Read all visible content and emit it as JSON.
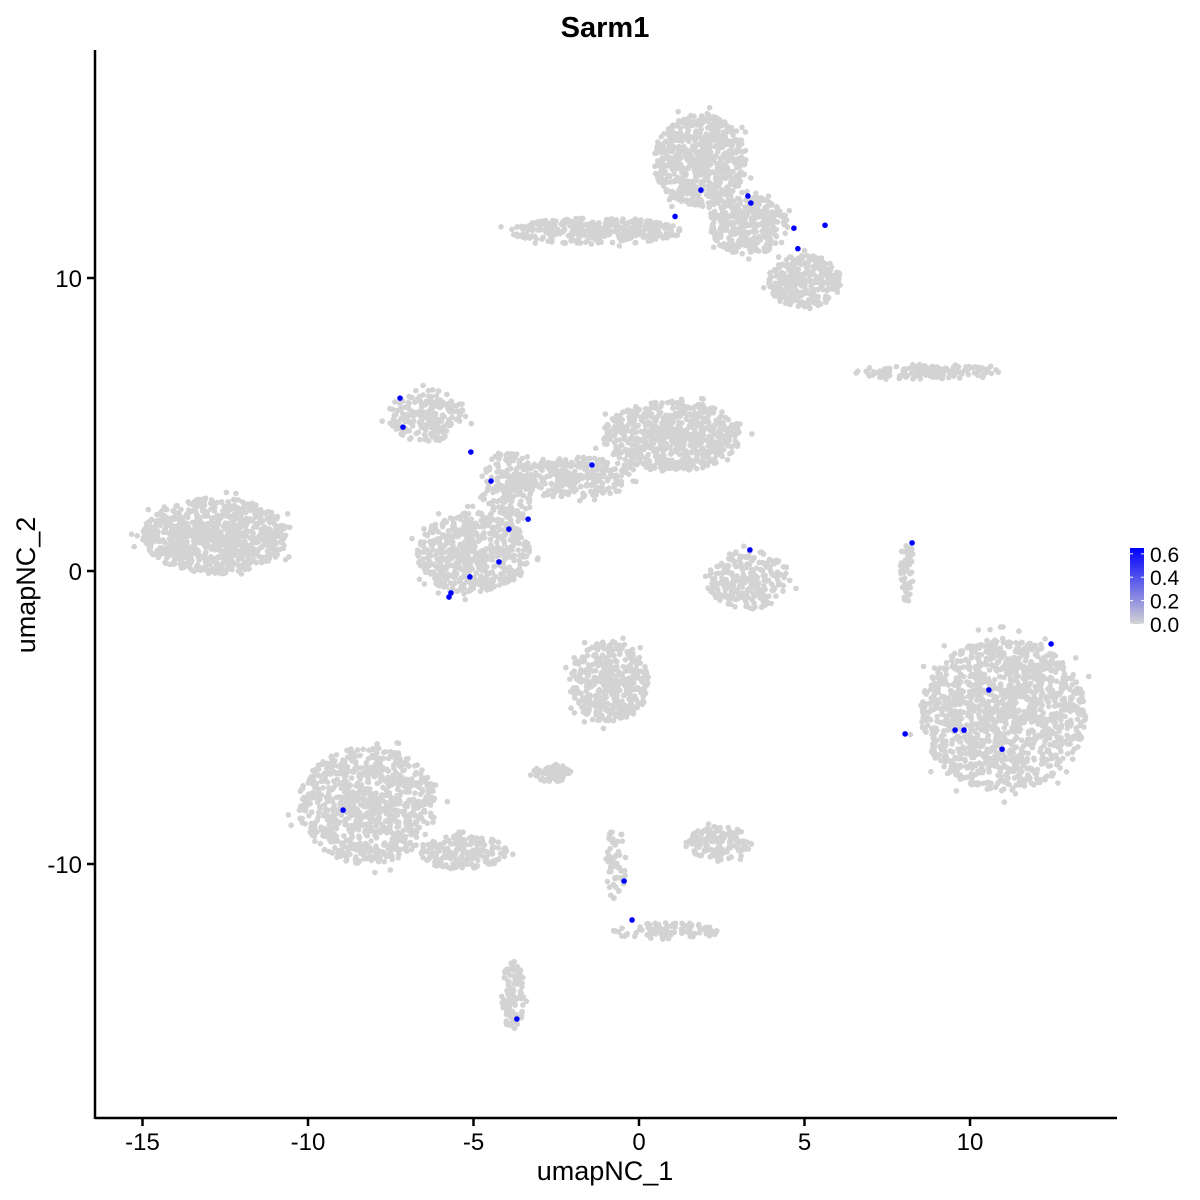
{
  "chart_data": {
    "type": "scatter",
    "title": "Sarm1",
    "xlabel": "umapNC_1",
    "ylabel": "umapNC_2",
    "xlim": [
      -16.5,
      14.5
    ],
    "ylim": [
      -18.7,
      17.7
    ],
    "xticks": [
      -15,
      -10,
      -5,
      0,
      5,
      10
    ],
    "yticks": [
      -10,
      0,
      10
    ],
    "grid": false,
    "legend": {
      "placement": "right",
      "type": "colorbar",
      "ticks": [
        "0.0",
        "0.2",
        "0.4",
        "0.6"
      ],
      "range": [
        0,
        0.65
      ],
      "low_color": "#d3d3d3",
      "high_color": "#0000ff"
    },
    "background_point_color": "#d3d3d3",
    "expressing_point_color": "#0000ff",
    "background_clusters": [
      {
        "cx": -12.8,
        "cy": 1.2,
        "rx": 2.2,
        "ry": 1.3,
        "n": 900
      },
      {
        "cx": 1.85,
        "cy": 14.0,
        "rx": 1.4,
        "ry": 1.6,
        "n": 700
      },
      {
        "cx": -1.3,
        "cy": 11.6,
        "rx": 2.6,
        "ry": 0.45,
        "n": 350
      },
      {
        "cx": 3.3,
        "cy": 11.8,
        "rx": 1.2,
        "ry": 1.0,
        "n": 350
      },
      {
        "cx": 5.0,
        "cy": 9.9,
        "rx": 1.1,
        "ry": 0.9,
        "n": 300
      },
      {
        "cx": 1.0,
        "cy": 4.6,
        "rx": 2.1,
        "ry": 1.2,
        "n": 700
      },
      {
        "cx": -2.0,
        "cy": 3.2,
        "rx": 2.0,
        "ry": 0.7,
        "n": 300
      },
      {
        "cx": -5.0,
        "cy": 0.6,
        "rx": 1.7,
        "ry": 1.4,
        "n": 600
      },
      {
        "cx": -4.0,
        "cy": 2.8,
        "rx": 0.8,
        "ry": 1.3,
        "n": 200
      },
      {
        "cx": -6.4,
        "cy": 5.3,
        "rx": 1.2,
        "ry": 0.9,
        "n": 200
      },
      {
        "cx": 11.0,
        "cy": -4.9,
        "rx": 2.5,
        "ry": 2.6,
        "n": 1400
      },
      {
        "cx": -8.2,
        "cy": -8.0,
        "rx": 2.1,
        "ry": 2.0,
        "n": 900
      },
      {
        "cx": -5.3,
        "cy": -9.6,
        "rx": 1.3,
        "ry": 0.6,
        "n": 200
      },
      {
        "cx": -3.8,
        "cy": -14.5,
        "rx": 0.35,
        "ry": 1.2,
        "n": 100
      },
      {
        "cx": -0.9,
        "cy": -3.8,
        "rx": 1.2,
        "ry": 1.4,
        "n": 450
      },
      {
        "cx": -2.6,
        "cy": -6.9,
        "rx": 0.6,
        "ry": 0.3,
        "n": 80
      },
      {
        "cx": 3.3,
        "cy": -0.3,
        "rx": 1.3,
        "ry": 1.0,
        "n": 250
      },
      {
        "cx": 2.4,
        "cy": -9.3,
        "rx": 1.0,
        "ry": 0.6,
        "n": 150
      },
      {
        "cx": 8.7,
        "cy": 6.8,
        "rx": 2.2,
        "ry": 0.25,
        "n": 150
      },
      {
        "cx": 8.1,
        "cy": 0.0,
        "rx": 0.2,
        "ry": 1.1,
        "n": 60
      },
      {
        "cx": 0.8,
        "cy": -12.3,
        "rx": 1.6,
        "ry": 0.3,
        "n": 100
      },
      {
        "cx": -0.7,
        "cy": -10.0,
        "rx": 0.3,
        "ry": 1.3,
        "n": 60
      }
    ],
    "points": [
      {
        "x": 1.87,
        "y": 13.0,
        "value": 0.6
      },
      {
        "x": 1.09,
        "y": 12.1,
        "value": 0.6
      },
      {
        "x": 3.29,
        "y": 12.8,
        "value": 0.6
      },
      {
        "x": 3.38,
        "y": 12.56,
        "value": 0.6
      },
      {
        "x": 4.68,
        "y": 11.7,
        "value": 0.6
      },
      {
        "x": 4.8,
        "y": 11.0,
        "value": 0.6
      },
      {
        "x": 5.62,
        "y": 11.8,
        "value": 0.6
      },
      {
        "x": -7.22,
        "y": 5.9,
        "value": 0.6
      },
      {
        "x": -7.13,
        "y": 4.91,
        "value": 0.6
      },
      {
        "x": -5.08,
        "y": 4.06,
        "value": 0.6
      },
      {
        "x": -4.47,
        "y": 3.07,
        "value": 0.6
      },
      {
        "x": -1.42,
        "y": 3.62,
        "value": 0.6
      },
      {
        "x": -3.35,
        "y": 1.77,
        "value": 0.6
      },
      {
        "x": -3.93,
        "y": 1.43,
        "value": 0.6
      },
      {
        "x": -4.23,
        "y": 0.31,
        "value": 0.6
      },
      {
        "x": -5.11,
        "y": -0.2,
        "value": 0.6
      },
      {
        "x": -5.68,
        "y": -0.75,
        "value": 0.6
      },
      {
        "x": -5.74,
        "y": -0.89,
        "value": 0.6
      },
      {
        "x": 3.35,
        "y": 0.72,
        "value": 0.6
      },
      {
        "x": 8.25,
        "y": 0.96,
        "value": 0.6
      },
      {
        "x": 12.45,
        "y": -2.49,
        "value": 0.6
      },
      {
        "x": 10.57,
        "y": -4.06,
        "value": 0.6
      },
      {
        "x": 9.55,
        "y": -5.43,
        "value": 0.6
      },
      {
        "x": 9.82,
        "y": -5.43,
        "value": 0.6
      },
      {
        "x": 10.97,
        "y": -6.08,
        "value": 0.6
      },
      {
        "x": 8.04,
        "y": -5.56,
        "value": 0.6
      },
      {
        "x": -8.94,
        "y": -8.16,
        "value": 0.6
      },
      {
        "x": -0.45,
        "y": -10.58,
        "value": 0.6
      },
      {
        "x": -0.21,
        "y": -11.91,
        "value": 0.6
      },
      {
        "x": -3.69,
        "y": -15.29,
        "value": 0.6
      }
    ]
  }
}
